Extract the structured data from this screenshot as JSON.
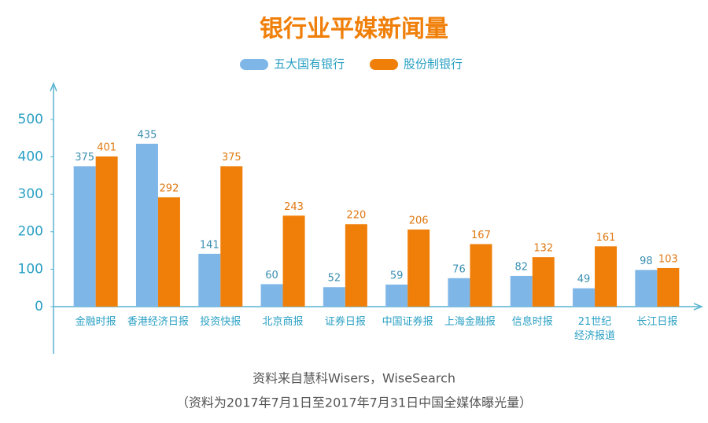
{
  "chart_data": {
    "type": "bar",
    "title": "银行业平媒新闻量",
    "categories": [
      "金融时报",
      "香港经济日报",
      "投资快报",
      "北京商报",
      "证券日报",
      "中国证券报",
      "上海金融报",
      "信息时报",
      "21世纪\n经济报道",
      "长江日报"
    ],
    "series": [
      {
        "name": "五大国有银行",
        "color": "#7fb6e8",
        "values": [
          375,
          435,
          141,
          60,
          52,
          59,
          76,
          82,
          49,
          98
        ]
      },
      {
        "name": "股份制银行",
        "color": "#f07f09",
        "values": [
          401,
          292,
          375,
          243,
          220,
          206,
          167,
          132,
          161,
          103
        ]
      }
    ],
    "ylim": [
      0,
      590
    ],
    "yticks": [
      0,
      100,
      200,
      300,
      400,
      500
    ],
    "source": "资料来自慧科Wisers，WiseSearch",
    "note": "（资料为2017年7月1日至2017年7月31日中国全媒体曝光量）"
  }
}
